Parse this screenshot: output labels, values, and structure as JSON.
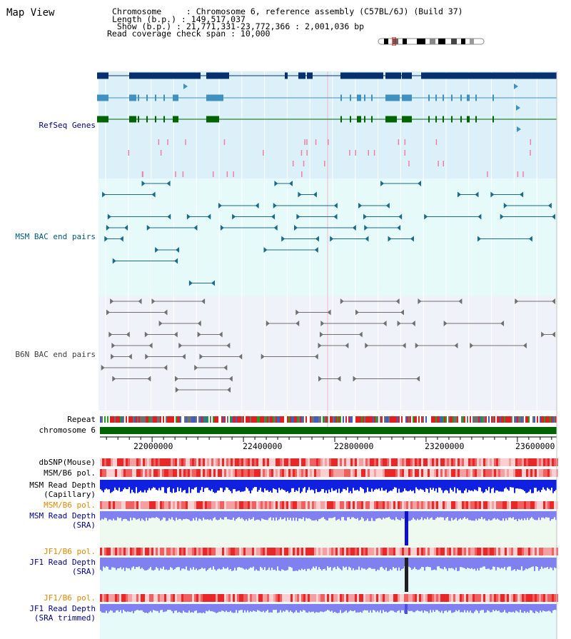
{
  "header": {
    "title": "Map View",
    "chromosome_label": "Chromosome     : Chromosome 6, reference assembly (C57BL/6J) (Build 37)",
    "length_label": "Length (b.p.) : 149,517,037",
    "show_label": " Show (b.p.) : 21,771,331-23,772,366 : 2,001,036 bp",
    "coverage_label": "Read coverage check span : 10,000"
  },
  "lanes": {
    "refseq": "RefSeq Genes",
    "msm_bac": "MSM BAC end pairs",
    "b6n_bac": "B6N BAC end pairs",
    "repeat": "Repeat",
    "chromosome": "chromosome 6"
  },
  "axis": {
    "range": [
      21771331,
      23772366
    ],
    "ticks": [
      "22000000",
      "22400000",
      "22800000",
      "23200000",
      "23600000"
    ]
  },
  "tracks": [
    {
      "label": "dbSNP(Mouse)",
      "color": "#000000"
    },
    {
      "label": "MSM/B6 pol.",
      "color": "#000000"
    },
    {
      "label": "MSM Read Depth\n(Capillary)",
      "color": "#000000"
    },
    {
      "label": "MSM/B6 pol.",
      "color": "#e08800"
    },
    {
      "label": "MSM Read Depth\n(SRA)",
      "color": "#00008b"
    },
    {
      "label": "JF1/B6 pol.",
      "color": "#e08800"
    },
    {
      "label": "JF1 Read Depth\n(SRA)",
      "color": "#00008b"
    },
    {
      "label": "JF1/B6 pol.",
      "color": "#e08800"
    },
    {
      "label": "JF1 Read Depth\n(SRA trimmed)",
      "color": "#00008b"
    }
  ],
  "colors": {
    "refseq_bg": "#dcf0fa",
    "msm_bg": "#e6fafa",
    "b6n_bg": "#f0f2fa",
    "gene_dark": "#06306e",
    "gene_mid": "#4090c0",
    "gene_green": "#006400",
    "msm_pair": "#1a6a8a",
    "b6n_pair": "#707070",
    "chromosome": "#006400",
    "snp": "#f05050",
    "depth_capillary": "#1020e0",
    "depth_sra": "#8080f0"
  }
}
